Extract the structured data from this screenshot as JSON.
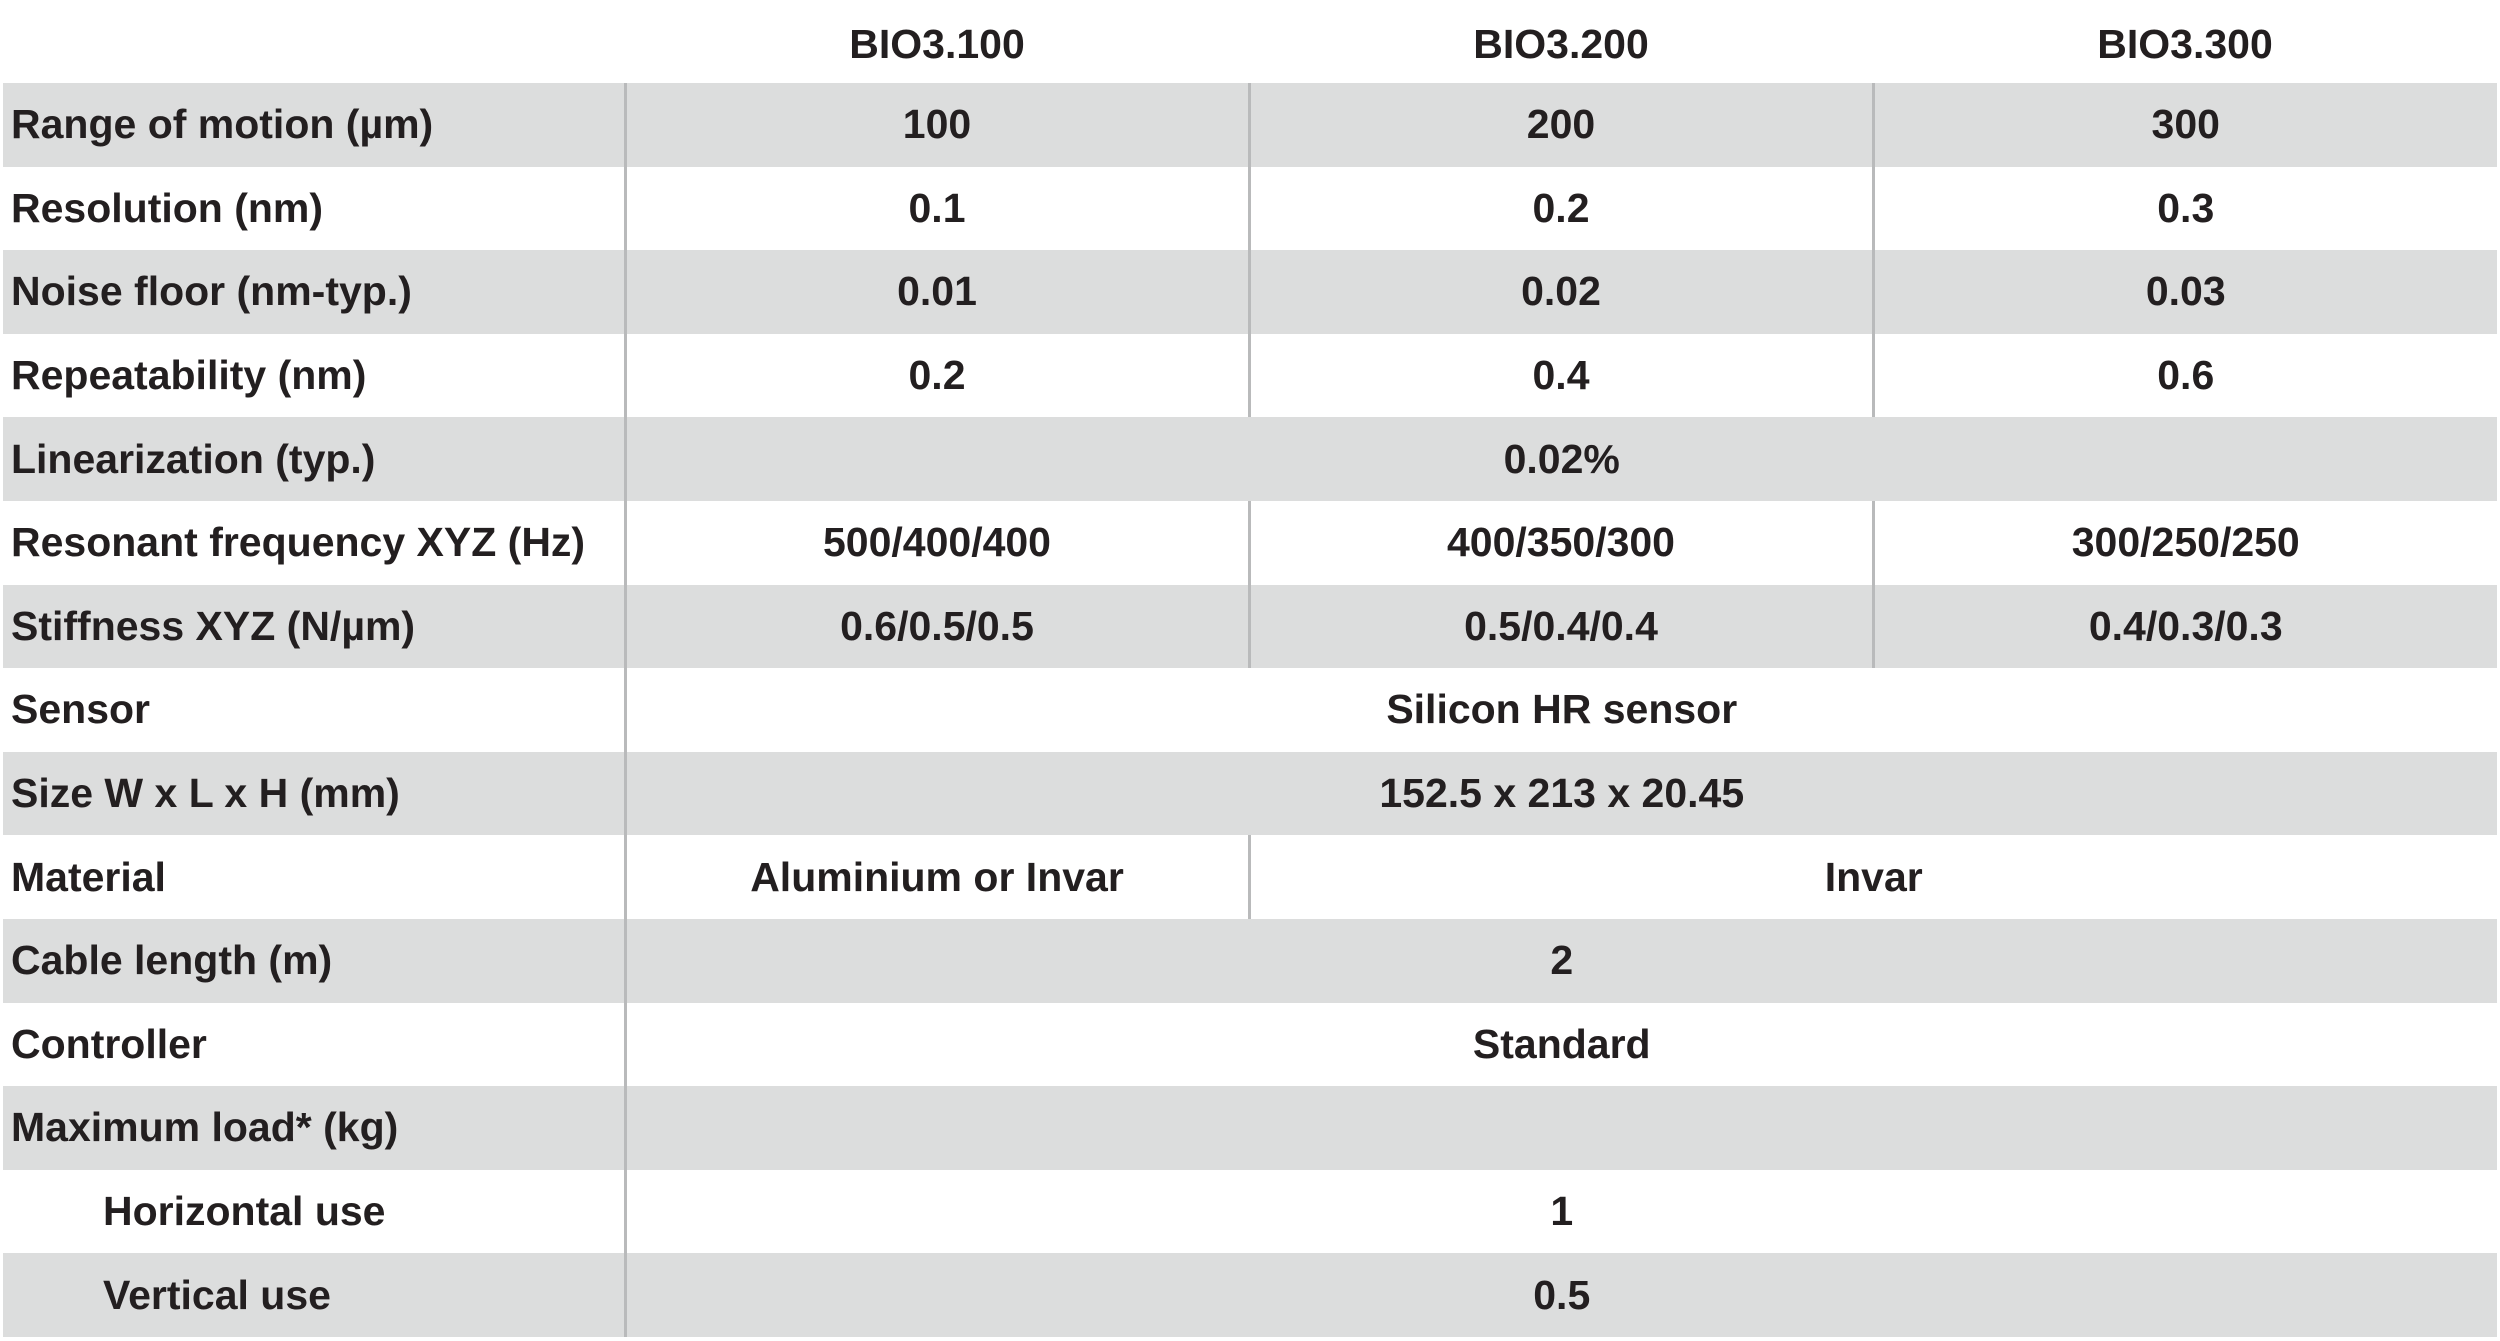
{
  "table": {
    "columns": [
      "",
      "BIO3.100",
      "BIO3.200",
      "BIO3.300"
    ],
    "rows": [
      {
        "label": "Range of motion (µm)",
        "indent": false,
        "shaded": true,
        "cells": [
          {
            "text": "100",
            "span": 1
          },
          {
            "text": "200",
            "span": 1
          },
          {
            "text": "300",
            "span": 1
          }
        ]
      },
      {
        "label": "Resolution (nm)",
        "indent": false,
        "shaded": false,
        "cells": [
          {
            "text": "0.1",
            "span": 1
          },
          {
            "text": "0.2",
            "span": 1
          },
          {
            "text": "0.3",
            "span": 1
          }
        ]
      },
      {
        "label": "Noise floor (nm-typ.)",
        "indent": false,
        "shaded": true,
        "cells": [
          {
            "text": "0.01",
            "span": 1
          },
          {
            "text": "0.02",
            "span": 1
          },
          {
            "text": "0.03",
            "span": 1
          }
        ]
      },
      {
        "label": "Repeatability (nm)",
        "indent": false,
        "shaded": false,
        "cells": [
          {
            "text": "0.2",
            "span": 1
          },
          {
            "text": "0.4",
            "span": 1
          },
          {
            "text": "0.6",
            "span": 1
          }
        ]
      },
      {
        "label": "Linearization (typ.)",
        "indent": false,
        "shaded": true,
        "cells": [
          {
            "text": "0.02%",
            "span": 3
          }
        ]
      },
      {
        "label": "Resonant frequency XYZ (Hz)",
        "indent": false,
        "shaded": false,
        "cells": [
          {
            "text": "500/400/400",
            "span": 1
          },
          {
            "text": "400/350/300",
            "span": 1
          },
          {
            "text": "300/250/250",
            "span": 1
          }
        ]
      },
      {
        "label": "Stiffness XYZ (N/µm)",
        "indent": false,
        "shaded": true,
        "cells": [
          {
            "text": "0.6/0.5/0.5",
            "span": 1
          },
          {
            "text": "0.5/0.4/0.4",
            "span": 1
          },
          {
            "text": "0.4/0.3/0.3",
            "span": 1
          }
        ]
      },
      {
        "label": "Sensor",
        "indent": false,
        "shaded": false,
        "cells": [
          {
            "text": "Silicon HR sensor",
            "span": 3
          }
        ]
      },
      {
        "label": "Size W x L x H (mm)",
        "indent": false,
        "shaded": true,
        "cells": [
          {
            "text": "152.5 x 213 x 20.45",
            "span": 3
          }
        ]
      },
      {
        "label": "Material",
        "indent": false,
        "shaded": false,
        "cells": [
          {
            "text": "Aluminium or Invar",
            "span": 1
          },
          {
            "text": "Invar",
            "span": 2
          }
        ]
      },
      {
        "label": "Cable length (m)",
        "indent": false,
        "shaded": true,
        "cells": [
          {
            "text": "2",
            "span": 3
          }
        ]
      },
      {
        "label": "Controller",
        "indent": false,
        "shaded": false,
        "cells": [
          {
            "text": "Standard",
            "span": 3
          }
        ]
      },
      {
        "label": "Maximum load* (kg)",
        "indent": false,
        "shaded": true,
        "cells": [
          {
            "text": "",
            "span": 3
          }
        ]
      },
      {
        "label": "Horizontal use",
        "indent": true,
        "shaded": false,
        "cells": [
          {
            "text": "1",
            "span": 3
          }
        ]
      },
      {
        "label": "Vertical use",
        "indent": true,
        "shaded": true,
        "cells": [
          {
            "text": "0.5",
            "span": 3
          }
        ]
      }
    ]
  }
}
